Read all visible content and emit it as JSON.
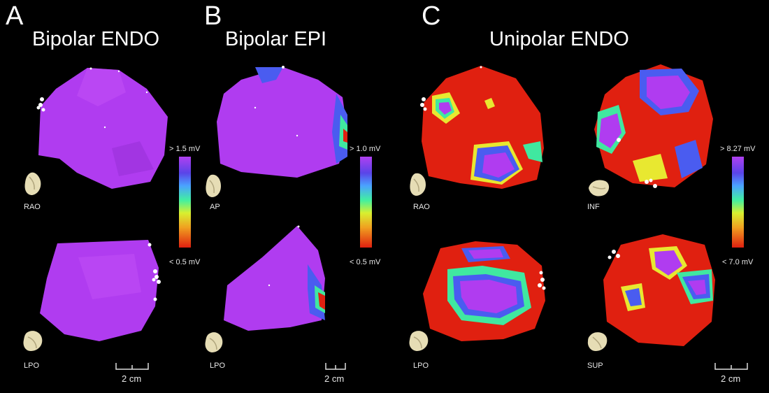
{
  "panels": [
    {
      "letter": "A",
      "title": "Bipolar ENDO",
      "views": [
        "RAO",
        "LPO"
      ],
      "colorbar": {
        "high": "> 1.5 mV",
        "low": "< 0.5 mV"
      },
      "scale": "2 cm"
    },
    {
      "letter": "B",
      "title": "Bipolar EPI",
      "views": [
        "AP",
        "LPO"
      ],
      "colorbar": {
        "high": "> 1.0 mV",
        "low": "< 0.5 mV"
      },
      "scale": "2 cm"
    },
    {
      "letter": "C",
      "title": "Unipolar ENDO",
      "views": [
        "RAO",
        "INF",
        "LPO",
        "SUP"
      ],
      "colorbar": {
        "high": "> 8.27 mV",
        "low": "< 7.0 mV"
      },
      "scale": "2 cm"
    }
  ],
  "colors": {
    "normal": "#b03cf0",
    "scar": "#e02010",
    "border_blue": "#4a5cf0",
    "border_green": "#40e8a0",
    "border_yellow": "#e8e830",
    "background": "#000000"
  },
  "icons": [
    "heart-icon",
    "scale-bar-icon"
  ]
}
